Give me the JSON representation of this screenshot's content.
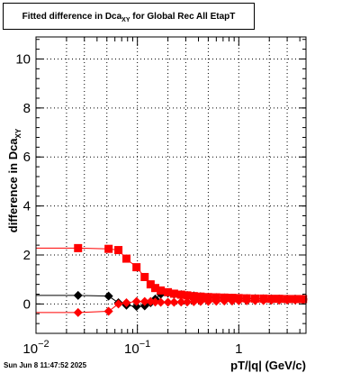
{
  "title": {
    "main": "Fitted difference in Dca",
    "sub": "XY",
    "tail": " for Global Rec All EtapT"
  },
  "footer": "Sun Jun  8 11:47:52 2025",
  "chart_data": {
    "type": "scatter",
    "title": "Fitted difference in Dca_XY for Global Rec All EtapT",
    "xlabel": "pT/|q| (GeV/c)",
    "ylabel": "difference in Dca_XY",
    "xscale": "log",
    "xlim": [
      0.01,
      4.6
    ],
    "ylim": [
      -1.2,
      10.9
    ],
    "grid": true,
    "yticks": [
      0,
      2,
      4,
      6,
      8,
      10
    ],
    "xticks": [
      {
        "value": 0.01,
        "base": "10",
        "exp": "−2"
      },
      {
        "value": 0.1,
        "base": "10",
        "exp": "−1"
      },
      {
        "value": 1,
        "base": "1",
        "exp": ""
      }
    ],
    "series": [
      {
        "color": "#000000",
        "marker": "diamond",
        "points": [
          [
            0.026,
            0.35
          ],
          [
            0.052,
            0.32
          ],
          [
            0.065,
            0.05
          ],
          [
            0.078,
            -0.05
          ],
          [
            0.098,
            -0.1
          ],
          [
            0.118,
            -0.08
          ],
          [
            0.135,
            0.05
          ],
          [
            0.15,
            0.2
          ],
          [
            0.17,
            0.4
          ],
          [
            0.2,
            0.45
          ],
          [
            0.23,
            0.4
          ],
          [
            0.27,
            0.38
          ],
          [
            0.31,
            0.35
          ],
          [
            0.36,
            0.33
          ],
          [
            0.42,
            0.3
          ],
          [
            0.5,
            0.28
          ],
          [
            0.6,
            0.26
          ],
          [
            0.72,
            0.25
          ],
          [
            0.86,
            0.24
          ],
          [
            1.0,
            0.23
          ],
          [
            1.2,
            0.22
          ],
          [
            1.45,
            0.22
          ],
          [
            1.75,
            0.21
          ],
          [
            2.1,
            0.21
          ],
          [
            2.5,
            0.2
          ],
          [
            3.0,
            0.2
          ],
          [
            3.6,
            0.2
          ],
          [
            4.3,
            0.2
          ]
        ]
      },
      {
        "color": "#ff0000",
        "marker": "square",
        "points": [
          [
            0.026,
            2.28
          ],
          [
            0.052,
            2.25
          ],
          [
            0.065,
            2.2
          ],
          [
            0.078,
            1.85
          ],
          [
            0.098,
            1.5
          ],
          [
            0.118,
            1.1
          ],
          [
            0.135,
            0.8
          ],
          [
            0.15,
            0.65
          ],
          [
            0.17,
            0.55
          ],
          [
            0.2,
            0.48
          ],
          [
            0.23,
            0.42
          ],
          [
            0.27,
            0.38
          ],
          [
            0.31,
            0.35
          ],
          [
            0.36,
            0.32
          ],
          [
            0.42,
            0.3
          ],
          [
            0.5,
            0.28
          ],
          [
            0.6,
            0.27
          ],
          [
            0.72,
            0.26
          ],
          [
            0.86,
            0.25
          ],
          [
            1.0,
            0.24
          ],
          [
            1.2,
            0.23
          ],
          [
            1.45,
            0.22
          ],
          [
            1.75,
            0.22
          ],
          [
            2.1,
            0.21
          ],
          [
            2.5,
            0.21
          ],
          [
            3.0,
            0.2
          ],
          [
            3.6,
            0.2
          ],
          [
            4.3,
            0.2
          ]
        ]
      },
      {
        "color": "#ff0000",
        "marker": "diamond",
        "points": [
          [
            0.026,
            -0.35
          ],
          [
            0.052,
            -0.3
          ],
          [
            0.065,
            0.0
          ],
          [
            0.078,
            0.05
          ],
          [
            0.098,
            0.1
          ],
          [
            0.118,
            0.1
          ],
          [
            0.135,
            0.1
          ],
          [
            0.15,
            0.08
          ],
          [
            0.17,
            0.07
          ],
          [
            0.2,
            0.07
          ],
          [
            0.23,
            0.07
          ],
          [
            0.27,
            0.08
          ],
          [
            0.31,
            0.08
          ],
          [
            0.36,
            0.09
          ],
          [
            0.42,
            0.1
          ],
          [
            0.5,
            0.1
          ],
          [
            0.6,
            0.11
          ],
          [
            0.72,
            0.12
          ],
          [
            0.86,
            0.12
          ],
          [
            1.0,
            0.13
          ],
          [
            1.2,
            0.13
          ],
          [
            1.45,
            0.14
          ],
          [
            1.75,
            0.14
          ],
          [
            2.1,
            0.15
          ],
          [
            2.5,
            0.15
          ],
          [
            3.0,
            0.16
          ],
          [
            3.6,
            0.16
          ],
          [
            4.3,
            0.16
          ]
        ]
      }
    ]
  }
}
